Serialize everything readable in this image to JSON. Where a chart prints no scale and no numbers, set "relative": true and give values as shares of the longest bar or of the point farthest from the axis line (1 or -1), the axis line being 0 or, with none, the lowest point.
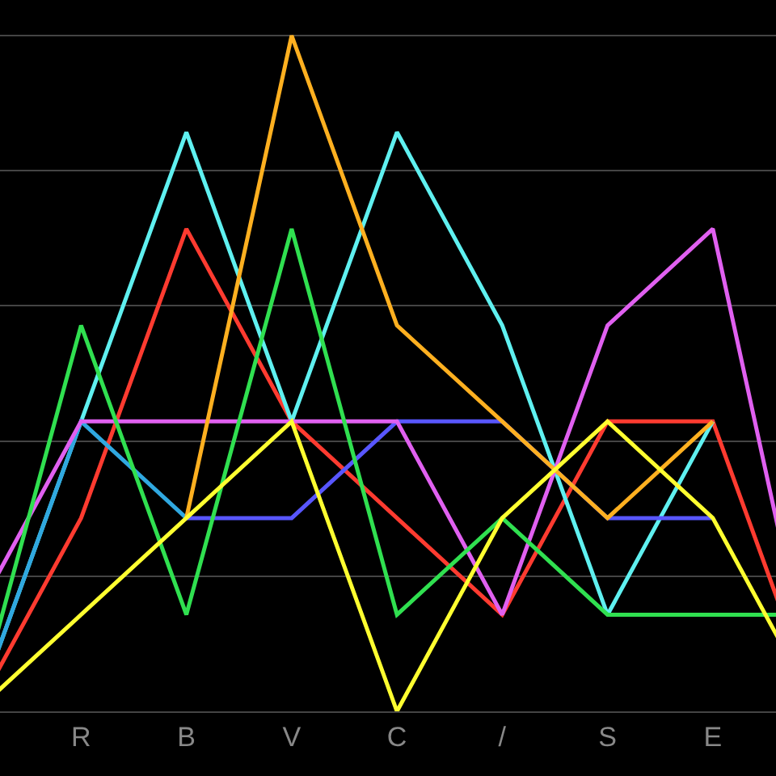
{
  "chart_data": {
    "type": "line",
    "relative": true,
    "grid": "y",
    "categories": [
      null,
      "R",
      "B",
      "V",
      "C",
      "/",
      "S",
      "E",
      null
    ],
    "series": [
      {
        "color": "#ff3b30",
        "values": [
          0,
          0.286,
          0.714,
          0.429,
          0.286,
          0.143,
          0.429,
          0.429,
          0
        ]
      },
      {
        "color": "#5ff0f0",
        "values": [
          0,
          0.429,
          0.857,
          0.429,
          0.857,
          0.571,
          0.143,
          0.429,
          null
        ]
      },
      {
        "color": "#30a8e0",
        "values": [
          0,
          0.429,
          0.286,
          null,
          null,
          null,
          null,
          null,
          null
        ]
      },
      {
        "color": "#5856ff",
        "values": [
          null,
          null,
          0.286,
          0.286,
          0.429,
          0.429,
          0.286,
          0.286,
          null
        ]
      },
      {
        "color": "#e060f0",
        "values": [
          0.143,
          0.429,
          0.429,
          0.429,
          0.429,
          0.143,
          0.571,
          0.714,
          0
        ]
      },
      {
        "color": "#30e050",
        "values": [
          0,
          0.571,
          0.143,
          0.714,
          0.143,
          0.286,
          0.143,
          0.143,
          0.143
        ]
      },
      {
        "color": "#ffb020",
        "values": [
          null,
          null,
          0.286,
          1,
          0.571,
          0.429,
          0.286,
          0.429,
          null
        ]
      },
      {
        "color": "#ffff30",
        "values": [
          0,
          0.143,
          0.286,
          0.429,
          0,
          0.286,
          0.429,
          0.286,
          0
        ]
      }
    ]
  }
}
